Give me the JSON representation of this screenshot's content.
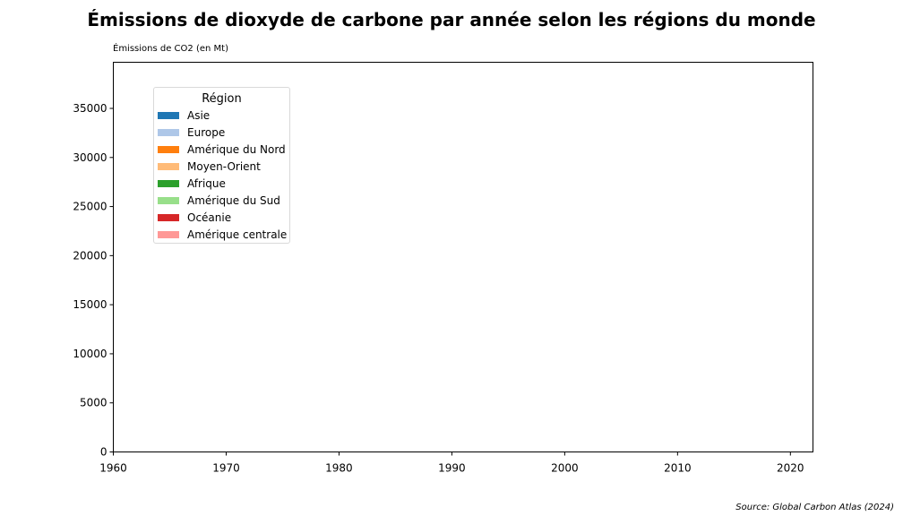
{
  "chart_data": {
    "type": "area",
    "title": "Émissions de dioxyde de carbone par année selon les régions du monde",
    "ylabel": "Émissions de CO2 (en Mt)",
    "xlabel": "",
    "xlim": [
      1960,
      2022
    ],
    "ylim": [
      0,
      39700
    ],
    "x_ticks": [
      1960,
      1970,
      1980,
      1990,
      2000,
      2010,
      2020
    ],
    "y_ticks": [
      0,
      5000,
      10000,
      15000,
      20000,
      25000,
      30000,
      35000
    ],
    "grid": false,
    "legend": {
      "title": "Région",
      "placement": "upper-left",
      "entries": [
        {
          "name": "Asie",
          "color": "#1f77b4"
        },
        {
          "name": "Europe",
          "color": "#aec7e8"
        },
        {
          "name": "Amérique du Nord",
          "color": "#ff7f0e"
        },
        {
          "name": "Moyen-Orient",
          "color": "#ffbb78"
        },
        {
          "name": "Afrique",
          "color": "#2ca02c"
        },
        {
          "name": "Amérique du Sud",
          "color": "#98df8a"
        },
        {
          "name": "Océanie",
          "color": "#d62728"
        },
        {
          "name": "Amérique centrale",
          "color": "#ff9896"
        }
      ]
    },
    "series": []
  },
  "source": "Source: Global Carbon Atlas (2024)"
}
